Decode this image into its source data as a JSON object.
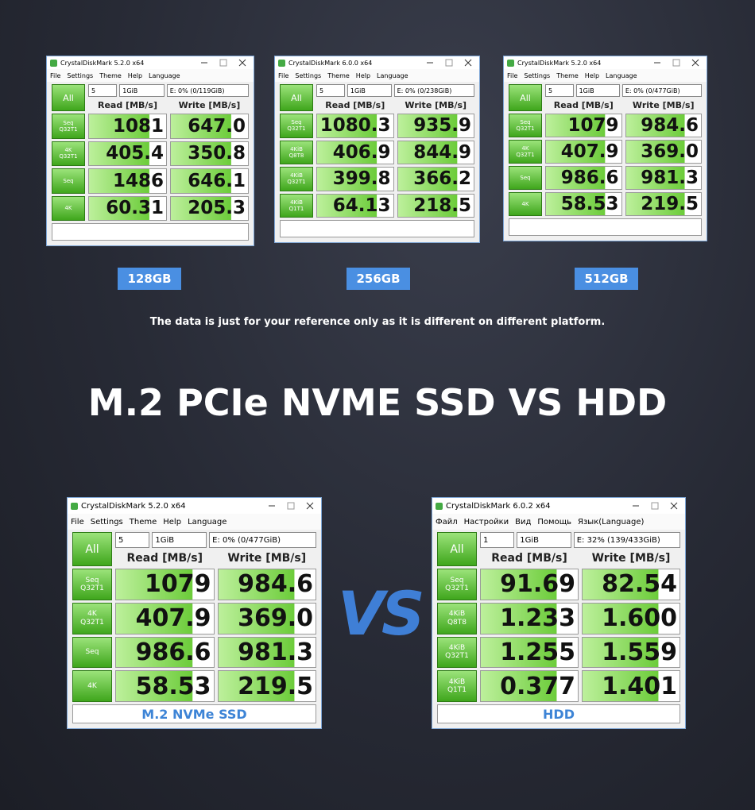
{
  "windows": [
    {
      "title": "CrystalDiskMark 5.2.0 x64",
      "menu": [
        "File",
        "Settings",
        "Theme",
        "Help",
        "Language"
      ],
      "count": "5",
      "size": "1GiB",
      "drive": "E: 0% (0/119GiB)",
      "all": "All",
      "read_header": "Read [MB/s]",
      "write_header": "Write [MB/s]",
      "rows": [
        {
          "label": [
            "Seq",
            "Q32T1"
          ],
          "read": "1081",
          "write": "647.0"
        },
        {
          "label": [
            "4K",
            "Q32T1"
          ],
          "read": "405.4",
          "write": "350.8"
        },
        {
          "label": [
            "Seq"
          ],
          "read": "1486",
          "write": "646.1"
        },
        {
          "label": [
            "4K"
          ],
          "read": "60.31",
          "write": "205.3"
        }
      ]
    },
    {
      "title": "CrystalDiskMark 6.0.0 x64",
      "menu": [
        "File",
        "Settings",
        "Theme",
        "Help",
        "Language"
      ],
      "count": "5",
      "size": "1GiB",
      "drive": "E: 0% (0/238GiB)",
      "all": "All",
      "read_header": "Read [MB/s]",
      "write_header": "Write [MB/s]",
      "rows": [
        {
          "label": [
            "Seq",
            "Q32T1"
          ],
          "read": "1080.3",
          "write": "935.9"
        },
        {
          "label": [
            "4KiB",
            "Q8T8"
          ],
          "read": "406.9",
          "write": "844.9"
        },
        {
          "label": [
            "4KiB",
            "Q32T1"
          ],
          "read": "399.8",
          "write": "366.2"
        },
        {
          "label": [
            "4KiB",
            "Q1T1"
          ],
          "read": "64.13",
          "write": "218.5"
        }
      ]
    },
    {
      "title": "CrystalDiskMark 5.2.0 x64",
      "menu": [
        "File",
        "Settings",
        "Theme",
        "Help",
        "Language"
      ],
      "count": "5",
      "size": "1GiB",
      "drive": "E: 0% (0/477GiB)",
      "all": "All",
      "read_header": "Read [MB/s]",
      "write_header": "Write [MB/s]",
      "rows": [
        {
          "label": [
            "Seq",
            "Q32T1"
          ],
          "read": "1079",
          "write": "984.6"
        },
        {
          "label": [
            "4K",
            "Q32T1"
          ],
          "read": "407.9",
          "write": "369.0"
        },
        {
          "label": [
            "Seq"
          ],
          "read": "986.6",
          "write": "981.3"
        },
        {
          "label": [
            "4K"
          ],
          "read": "58.53",
          "write": "219.5"
        }
      ]
    },
    {
      "title": "CrystalDiskMark 5.2.0 x64",
      "menu": [
        "File",
        "Settings",
        "Theme",
        "Help",
        "Language"
      ],
      "count": "5",
      "size": "1GiB",
      "drive": "E: 0% (0/477GiB)",
      "all": "All",
      "read_header": "Read [MB/s]",
      "write_header": "Write [MB/s]",
      "rows": [
        {
          "label": [
            "Seq",
            "Q32T1"
          ],
          "read": "1079",
          "write": "984.6"
        },
        {
          "label": [
            "4K",
            "Q32T1"
          ],
          "read": "407.9",
          "write": "369.0"
        },
        {
          "label": [
            "Seq"
          ],
          "read": "986.6",
          "write": "981.3"
        },
        {
          "label": [
            "4K"
          ],
          "read": "58.53",
          "write": "219.5"
        }
      ],
      "comment": "M.2 NVMe SSD"
    },
    {
      "title": "CrystalDiskMark 6.0.2 x64",
      "menu": [
        "Файл",
        "Настройки",
        "Вид",
        "Помощь",
        "Язык(Language)"
      ],
      "count": "1",
      "size": "1GiB",
      "drive": "E: 32% (139/433GiB)",
      "all": "All",
      "read_header": "Read [MB/s]",
      "write_header": "Write [MB/s]",
      "rows": [
        {
          "label": [
            "Seq",
            "Q32T1"
          ],
          "read": "91.69",
          "write": "82.54"
        },
        {
          "label": [
            "4KiB",
            "Q8T8"
          ],
          "read": "1.233",
          "write": "1.600"
        },
        {
          "label": [
            "4KiB",
            "Q32T1"
          ],
          "read": "1.255",
          "write": "1.559"
        },
        {
          "label": [
            "4KiB",
            "Q1T1"
          ],
          "read": "0.377",
          "write": "1.401"
        }
      ],
      "comment": "HDD"
    }
  ],
  "capacity_labels": [
    "128GB",
    "256GB",
    "512GB"
  ],
  "note": "The data is just for your reference only as it is different on different platform.",
  "heading": "M.2 PCIe NVME SSD VS HDD",
  "vs": "VS"
}
